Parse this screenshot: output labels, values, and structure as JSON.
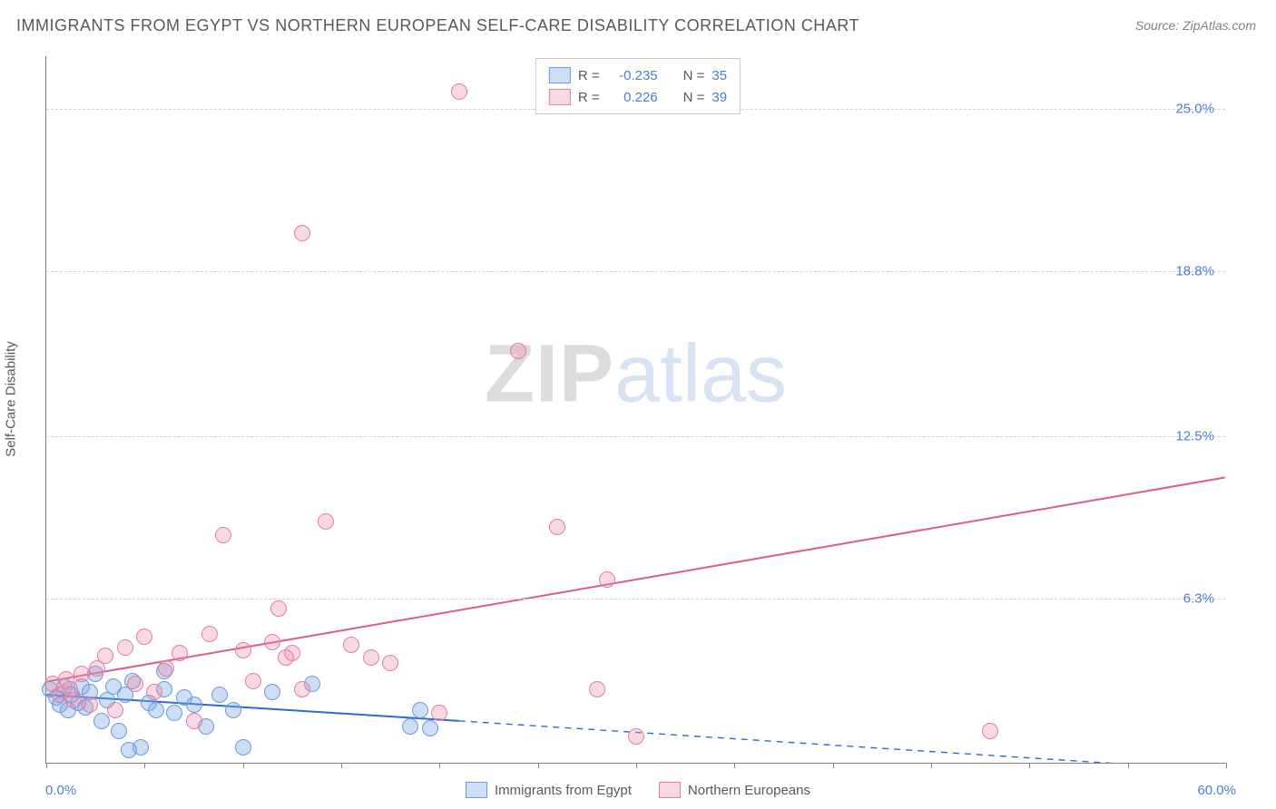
{
  "title": "IMMIGRANTS FROM EGYPT VS NORTHERN EUROPEAN SELF-CARE DISABILITY CORRELATION CHART",
  "source_label": "Source: ZipAtlas.com",
  "y_axis_title": "Self-Care Disability",
  "watermark": {
    "part1": "ZIP",
    "part2": "atlas"
  },
  "chart": {
    "type": "scatter",
    "background_color": "#ffffff",
    "grid_color": "#d0d0d0",
    "axis_color": "#808080",
    "tick_label_color": "#4a7fd1",
    "xlim": [
      0,
      60
    ],
    "ylim": [
      0,
      27
    ],
    "x_min_label": "0.0%",
    "x_max_label": "60.0%",
    "y_ticks": [
      {
        "value": 6.3,
        "label": "6.3%"
      },
      {
        "value": 12.5,
        "label": "12.5%"
      },
      {
        "value": 18.8,
        "label": "18.8%"
      },
      {
        "value": 25.0,
        "label": "25.0%"
      }
    ],
    "x_tick_positions": [
      0,
      5,
      10,
      15,
      20,
      25,
      30,
      35,
      40,
      45,
      50,
      55,
      60
    ],
    "marker_radius": 9,
    "marker_border_width": 1.5,
    "trend_line_width": 2
  },
  "series": [
    {
      "key": "egypt",
      "label": "Immigrants from Egypt",
      "fill_color": "rgba(120,165,225,0.38)",
      "border_color": "#6b9be0",
      "line_color": "#2e6bd0",
      "R": "-0.235",
      "N": "35",
      "trend": {
        "x1": 0,
        "y1": 2.6,
        "x2_solid": 21,
        "y2_solid": 1.6,
        "x2": 60,
        "y2": -0.3
      },
      "points": [
        [
          0.2,
          2.8
        ],
        [
          0.5,
          2.5
        ],
        [
          0.7,
          2.2
        ],
        [
          0.9,
          2.9
        ],
        [
          1.1,
          2.0
        ],
        [
          1.3,
          2.6
        ],
        [
          1.6,
          2.3
        ],
        [
          1.8,
          2.9
        ],
        [
          2.0,
          2.1
        ],
        [
          2.2,
          2.7
        ],
        [
          2.5,
          3.4
        ],
        [
          2.8,
          1.6
        ],
        [
          3.1,
          2.4
        ],
        [
          3.4,
          2.9
        ],
        [
          3.7,
          1.2
        ],
        [
          4.0,
          2.6
        ],
        [
          4.4,
          3.1
        ],
        [
          4.8,
          0.6
        ],
        [
          5.2,
          2.3
        ],
        [
          5.6,
          2.0
        ],
        [
          6.0,
          2.8
        ],
        [
          6.5,
          1.9
        ],
        [
          7.0,
          2.5
        ],
        [
          7.5,
          2.2
        ],
        [
          8.1,
          1.4
        ],
        [
          8.8,
          2.6
        ],
        [
          9.5,
          2.0
        ],
        [
          10.0,
          0.6
        ],
        [
          11.5,
          2.7
        ],
        [
          4.2,
          0.5
        ],
        [
          13.5,
          3.0
        ],
        [
          18.5,
          1.4
        ],
        [
          19.5,
          1.3
        ],
        [
          19.0,
          2.0
        ],
        [
          6.0,
          3.5
        ]
      ]
    },
    {
      "key": "neuro",
      "label": "Northern Europeans",
      "fill_color": "rgba(235,140,170,0.34)",
      "border_color": "#e47fa2",
      "line_color": "#e05a8a",
      "R": "0.226",
      "N": "39",
      "trend": {
        "x1": 0,
        "y1": 3.1,
        "x2_solid": 60,
        "y2_solid": 10.9,
        "x2": 60,
        "y2": 10.9
      },
      "points": [
        [
          0.3,
          3.0
        ],
        [
          0.7,
          2.6
        ],
        [
          1.0,
          3.2
        ],
        [
          1.4,
          2.4
        ],
        [
          1.8,
          3.4
        ],
        [
          2.2,
          2.2
        ],
        [
          2.6,
          3.6
        ],
        [
          3.0,
          4.1
        ],
        [
          3.5,
          2.0
        ],
        [
          4.0,
          4.4
        ],
        [
          4.5,
          3.0
        ],
        [
          5.0,
          4.8
        ],
        [
          5.5,
          2.7
        ],
        [
          6.1,
          3.6
        ],
        [
          6.8,
          4.2
        ],
        [
          7.5,
          1.6
        ],
        [
          8.3,
          4.9
        ],
        [
          9.0,
          8.7
        ],
        [
          10.0,
          4.3
        ],
        [
          10.5,
          3.1
        ],
        [
          11.5,
          4.6
        ],
        [
          11.8,
          5.9
        ],
        [
          12.2,
          4.0
        ],
        [
          12.5,
          4.2
        ],
        [
          13.0,
          2.8
        ],
        [
          14.2,
          9.2
        ],
        [
          15.5,
          4.5
        ],
        [
          16.5,
          4.0
        ],
        [
          17.5,
          3.8
        ],
        [
          13.0,
          20.2
        ],
        [
          21.0,
          25.6
        ],
        [
          20.0,
          1.9
        ],
        [
          24.0,
          15.7
        ],
        [
          26.0,
          9.0
        ],
        [
          28.0,
          2.8
        ],
        [
          28.5,
          7.0
        ],
        [
          30.0,
          1.0
        ],
        [
          48.0,
          1.2
        ],
        [
          1.2,
          2.8
        ]
      ]
    }
  ],
  "legend_box": {
    "rows": [
      {
        "series": "egypt",
        "r_label": "R =",
        "n_label": "N ="
      },
      {
        "series": "neuro",
        "r_label": "R =",
        "n_label": "N ="
      }
    ]
  }
}
